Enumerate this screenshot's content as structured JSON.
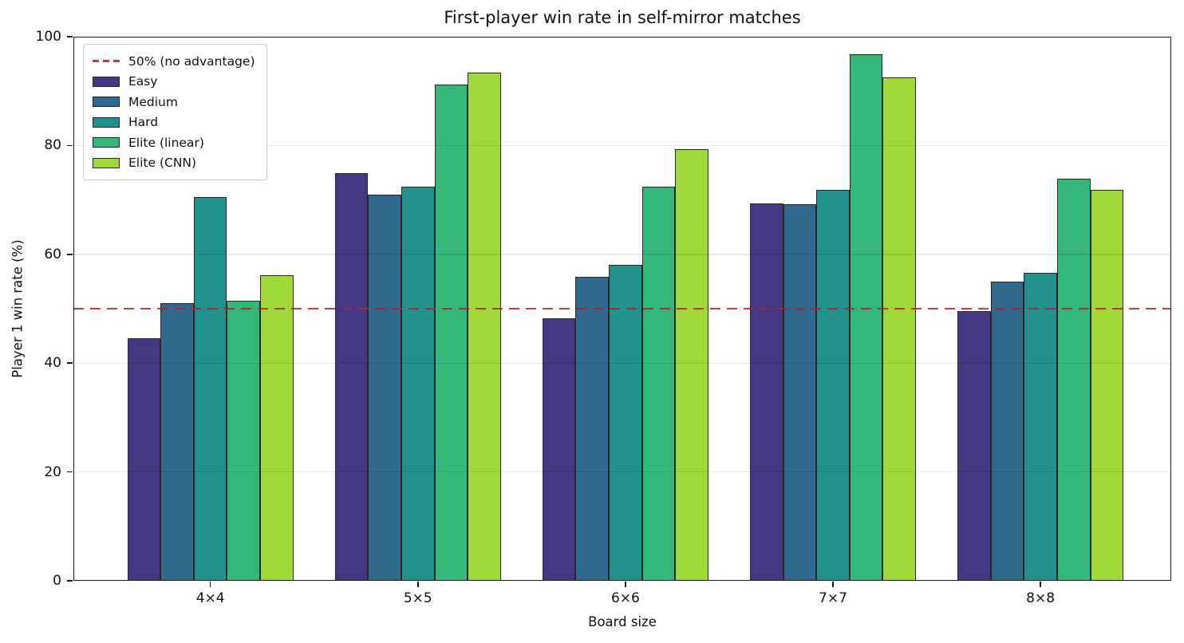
{
  "figure": {
    "title": "First-player win rate in self-mirror matches"
  },
  "chart_data": {
    "type": "bar",
    "title": "First-player win rate in self-mirror matches",
    "xlabel": "Board size",
    "ylabel": "Player 1 win rate (%)",
    "categories": [
      "4×4",
      "5×5",
      "6×6",
      "7×7",
      "8×8"
    ],
    "series": [
      {
        "name": "Easy",
        "color": "#453882",
        "values": [
          44.6,
          75.0,
          48.2,
          69.3,
          49.6
        ]
      },
      {
        "name": "Medium",
        "color": "#31688e",
        "values": [
          51.0,
          70.9,
          55.9,
          69.2,
          55.0
        ]
      },
      {
        "name": "Hard",
        "color": "#21918c",
        "values": [
          70.5,
          72.5,
          58.1,
          71.9,
          56.6
        ]
      },
      {
        "name": "Elite (linear)",
        "color": "#35b779",
        "values": [
          51.5,
          91.2,
          72.5,
          96.8,
          73.9
        ]
      },
      {
        "name": "Elite (CNN)",
        "color": "#9fd838",
        "values": [
          56.2,
          93.4,
          79.4,
          92.5,
          71.9
        ]
      }
    ],
    "reference_line": {
      "value": 50,
      "label": "50% (no advantage)",
      "color": "#b22222",
      "style": "dashed"
    },
    "ylim": [
      0,
      100
    ],
    "yticks": [
      0,
      20,
      40,
      60,
      80,
      100
    ],
    "xlim": [
      -0.66,
      4.63
    ],
    "bar_width": 0.16,
    "grid": "horizontal",
    "legend_position": "upper left",
    "edge_color": "#272727"
  }
}
